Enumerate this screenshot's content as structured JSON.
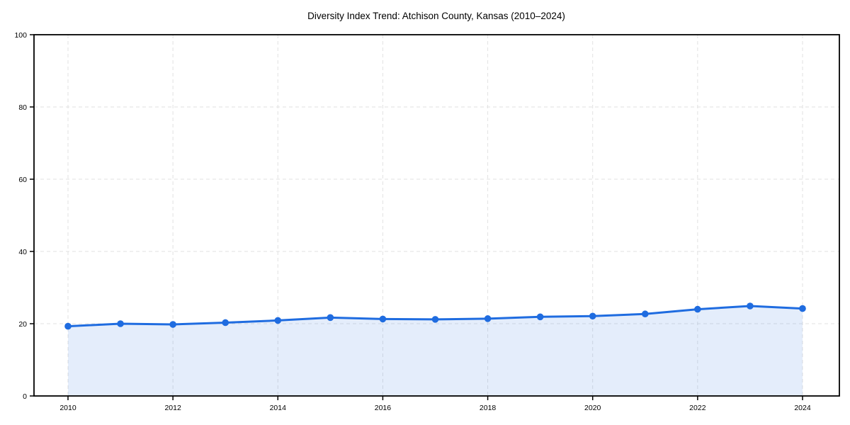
{
  "chart_data": {
    "type": "line",
    "title": "Diversity Index Trend: Atchison County, Kansas (2010–2024)",
    "x": [
      2010,
      2011,
      2012,
      2013,
      2014,
      2015,
      2016,
      2017,
      2018,
      2019,
      2020,
      2021,
      2022,
      2023,
      2024
    ],
    "series": [
      {
        "name": "Diversity Index",
        "values": [
          19.3,
          20.0,
          19.8,
          20.3,
          20.9,
          21.7,
          21.3,
          21.2,
          21.4,
          21.9,
          22.1,
          22.7,
          24.0,
          24.9,
          24.2
        ]
      }
    ],
    "xticks": [
      2010,
      2012,
      2014,
      2016,
      2018,
      2020,
      2022,
      2024
    ],
    "yticks": [
      0,
      20,
      40,
      60,
      80,
      100
    ],
    "ylim": [
      0,
      100
    ],
    "xlabel": "",
    "ylabel": "",
    "legend": "none",
    "grid": "dashed-both-axes",
    "marker": "circle",
    "area_fill": true,
    "colors": {
      "line": "#1f6ce0",
      "marker": "#1f6ce0",
      "fill": "rgba(31,108,224,0.12)",
      "grid": "#e2e2e2",
      "axis": "#000000",
      "text": "#000000",
      "background": "#ffffff"
    }
  }
}
